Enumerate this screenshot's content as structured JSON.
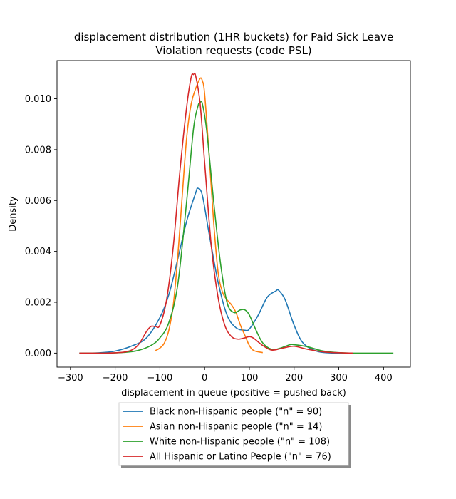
{
  "chart_data": {
    "type": "line",
    "title_lines": [
      "displacement distribution (1HR buckets) for Paid Sick Leave",
      "Violation requests (code PSL)"
    ],
    "xlabel": "displacement in queue (positive = pushed back)",
    "ylabel": "Density",
    "xlim": [
      -330,
      460
    ],
    "ylim": [
      -0.00055,
      0.0115
    ],
    "xticks": [
      -300,
      -200,
      -100,
      0,
      100,
      200,
      300,
      400
    ],
    "xtick_labels": [
      "−300",
      "−200",
      "−100",
      "0",
      "100",
      "200",
      "300",
      "400"
    ],
    "yticks": [
      0.0,
      0.002,
      0.004,
      0.006,
      0.008,
      0.01
    ],
    "ytick_labels": [
      "0.000",
      "0.002",
      "0.004",
      "0.006",
      "0.008",
      "0.010"
    ],
    "grid": false,
    "legend_position": "below",
    "series": [
      {
        "name": "Black non-Hispanic people (\"n\" = 90)",
        "color": "#1f77b4",
        "x": [
          -280,
          -240,
          -200,
          -160,
          -130,
          -100,
          -80,
          -60,
          -40,
          -20,
          -15,
          -5,
          10,
          30,
          50,
          70,
          90,
          100,
          120,
          140,
          160,
          165,
          180,
          200,
          220,
          250,
          280,
          310,
          330
        ],
        "y": [
          0.0,
          1e-05,
          8e-05,
          0.0003,
          0.0006,
          0.0014,
          0.0023,
          0.0037,
          0.0052,
          0.0063,
          0.00648,
          0.0062,
          0.0047,
          0.0028,
          0.0015,
          0.001,
          0.0009,
          0.00095,
          0.0015,
          0.0022,
          0.00245,
          0.00248,
          0.0021,
          0.0011,
          0.0004,
          8e-05,
          1e-05,
          0.0,
          0.0
        ]
      },
      {
        "name": "Asian non-Hispanic people (\"n\" = 14)",
        "color": "#ff7f0e",
        "x": [
          -110,
          -100,
          -90,
          -80,
          -70,
          -60,
          -50,
          -40,
          -30,
          -20,
          -10,
          -5,
          0,
          10,
          20,
          30,
          40,
          50,
          60,
          70,
          80,
          90,
          100,
          110,
          130
        ],
        "y": [
          0.0001,
          0.0002,
          0.0004,
          0.0009,
          0.0019,
          0.0038,
          0.0062,
          0.0085,
          0.0098,
          0.0104,
          0.0108,
          0.0107,
          0.0102,
          0.0078,
          0.0052,
          0.0032,
          0.0024,
          0.0021,
          0.0019,
          0.0016,
          0.0011,
          0.0007,
          0.0003,
          0.0001,
          2e-05
        ]
      },
      {
        "name": "White non-Hispanic people (\"n\" = 108)",
        "color": "#2ca02c",
        "x": [
          -280,
          -220,
          -180,
          -150,
          -120,
          -100,
          -80,
          -60,
          -40,
          -25,
          -15,
          -10,
          -5,
          5,
          20,
          35,
          50,
          65,
          80,
          90,
          100,
          115,
          130,
          150,
          170,
          190,
          200,
          230,
          260,
          290,
          330,
          380,
          422
        ],
        "y": [
          0.0,
          0.0,
          3e-05,
          0.0001,
          0.0003,
          0.0006,
          0.0012,
          0.0027,
          0.006,
          0.0088,
          0.0097,
          0.00985,
          0.0098,
          0.0087,
          0.006,
          0.0036,
          0.002,
          0.0016,
          0.0017,
          0.0017,
          0.0015,
          0.0009,
          0.0004,
          0.00015,
          0.0002,
          0.00033,
          0.00033,
          0.00025,
          0.0001,
          3e-05,
          0.0,
          0.0,
          0.0
        ]
      },
      {
        "name": "All Hispanic or Latino People (\"n\" = 76)",
        "color": "#d62728",
        "x": [
          -280,
          -220,
          -180,
          -160,
          -145,
          -130,
          -120,
          -110,
          -100,
          -85,
          -70,
          -55,
          -40,
          -30,
          -25,
          -20,
          -10,
          0,
          15,
          30,
          45,
          60,
          75,
          90,
          100,
          110,
          130,
          150,
          175,
          200,
          230,
          270,
          310,
          332
        ],
        "y": [
          0.0,
          0.0,
          4e-05,
          0.00015,
          0.0004,
          0.00085,
          0.00105,
          0.00105,
          0.0011,
          0.0021,
          0.0042,
          0.0072,
          0.0097,
          0.01085,
          0.01095,
          0.0109,
          0.0098,
          0.0075,
          0.0042,
          0.0022,
          0.0011,
          0.00065,
          0.00055,
          0.0006,
          0.00065,
          0.00058,
          0.0003,
          0.00012,
          0.0002,
          0.00027,
          0.00015,
          4e-05,
          1e-05,
          0.0
        ]
      }
    ]
  }
}
